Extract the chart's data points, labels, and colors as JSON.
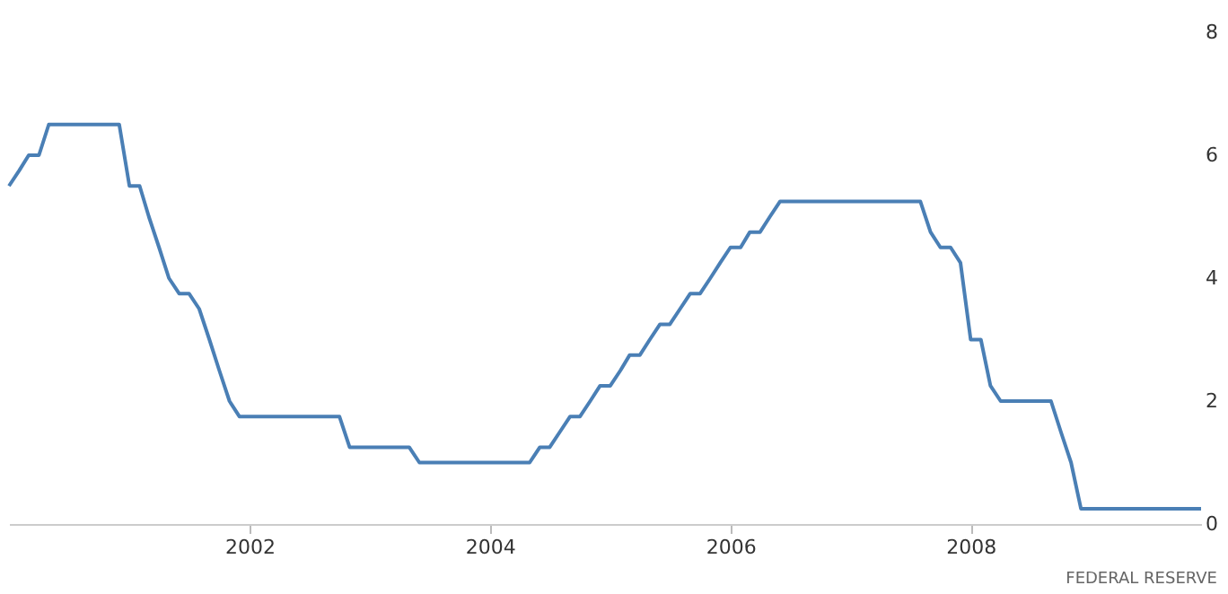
{
  "chart_data": {
    "type": "line",
    "color": "#4a7fb5",
    "x": [
      "2000-01",
      "2000-02",
      "2000-03",
      "2000-04",
      "2000-05",
      "2000-06",
      "2000-07",
      "2000-08",
      "2000-09",
      "2000-10",
      "2000-11",
      "2000-12",
      "2001-01",
      "2001-02",
      "2001-03",
      "2001-04",
      "2001-05",
      "2001-06",
      "2001-07",
      "2001-08",
      "2001-09",
      "2001-10",
      "2001-11",
      "2001-12",
      "2002-01",
      "2002-02",
      "2002-03",
      "2002-04",
      "2002-05",
      "2002-06",
      "2002-07",
      "2002-08",
      "2002-09",
      "2002-10",
      "2002-11",
      "2002-12",
      "2003-01",
      "2003-02",
      "2003-03",
      "2003-04",
      "2003-05",
      "2003-06",
      "2003-07",
      "2003-08",
      "2003-09",
      "2003-10",
      "2003-11",
      "2003-12",
      "2004-01",
      "2004-02",
      "2004-03",
      "2004-04",
      "2004-05",
      "2004-06",
      "2004-07",
      "2004-08",
      "2004-09",
      "2004-10",
      "2004-11",
      "2004-12",
      "2005-01",
      "2005-02",
      "2005-03",
      "2005-04",
      "2005-05",
      "2005-06",
      "2005-07",
      "2005-08",
      "2005-09",
      "2005-10",
      "2005-11",
      "2005-12",
      "2006-01",
      "2006-02",
      "2006-03",
      "2006-04",
      "2006-05",
      "2006-06",
      "2006-07",
      "2006-08",
      "2006-09",
      "2006-10",
      "2006-11",
      "2006-12",
      "2007-01",
      "2007-02",
      "2007-03",
      "2007-04",
      "2007-05",
      "2007-06",
      "2007-07",
      "2007-08",
      "2007-09",
      "2007-10",
      "2007-11",
      "2007-12",
      "2008-01",
      "2008-02",
      "2008-03",
      "2008-04",
      "2008-05",
      "2008-06",
      "2008-07",
      "2008-08",
      "2008-09",
      "2008-10",
      "2008-11",
      "2008-12",
      "2009-01",
      "2009-02",
      "2009-03",
      "2009-04",
      "2009-05",
      "2009-06",
      "2009-07",
      "2009-08",
      "2009-09",
      "2009-10",
      "2009-11",
      "2009-12"
    ],
    "values": [
      5.5,
      5.75,
      6.0,
      6.0,
      6.5,
      6.5,
      6.5,
      6.5,
      6.5,
      6.5,
      6.5,
      6.5,
      5.5,
      5.5,
      5.0,
      4.5,
      4.0,
      3.75,
      3.75,
      3.5,
      3.0,
      2.5,
      2.0,
      1.75,
      1.75,
      1.75,
      1.75,
      1.75,
      1.75,
      1.75,
      1.75,
      1.75,
      1.75,
      1.75,
      1.25,
      1.25,
      1.25,
      1.25,
      1.25,
      1.25,
      1.25,
      1.0,
      1.0,
      1.0,
      1.0,
      1.0,
      1.0,
      1.0,
      1.0,
      1.0,
      1.0,
      1.0,
      1.0,
      1.25,
      1.25,
      1.5,
      1.75,
      1.75,
      2.0,
      2.25,
      2.25,
      2.5,
      2.75,
      2.75,
      3.0,
      3.25,
      3.25,
      3.5,
      3.75,
      3.75,
      4.0,
      4.25,
      4.5,
      4.5,
      4.75,
      4.75,
      5.0,
      5.25,
      5.25,
      5.25,
      5.25,
      5.25,
      5.25,
      5.25,
      5.25,
      5.25,
      5.25,
      5.25,
      5.25,
      5.25,
      5.25,
      5.25,
      4.75,
      4.5,
      4.5,
      4.25,
      3.0,
      3.0,
      2.25,
      2.0,
      2.0,
      2.0,
      2.0,
      2.0,
      2.0,
      1.5,
      1.0,
      0.25,
      0.25,
      0.25,
      0.25,
      0.25,
      0.25,
      0.25,
      0.25,
      0.25,
      0.25,
      0.25,
      0.25,
      0.25
    ],
    "xlim": [
      "2000-01",
      "2009-12"
    ],
    "xticks": [
      "2002",
      "2004",
      "2006",
      "2008"
    ],
    "ylim": [
      0,
      8
    ],
    "yticks": [
      0,
      2,
      4,
      6,
      8
    ],
    "grid": false,
    "marker": "none",
    "line_style": "solid",
    "annotations": [
      "FEDERAL RESERVE"
    ]
  }
}
